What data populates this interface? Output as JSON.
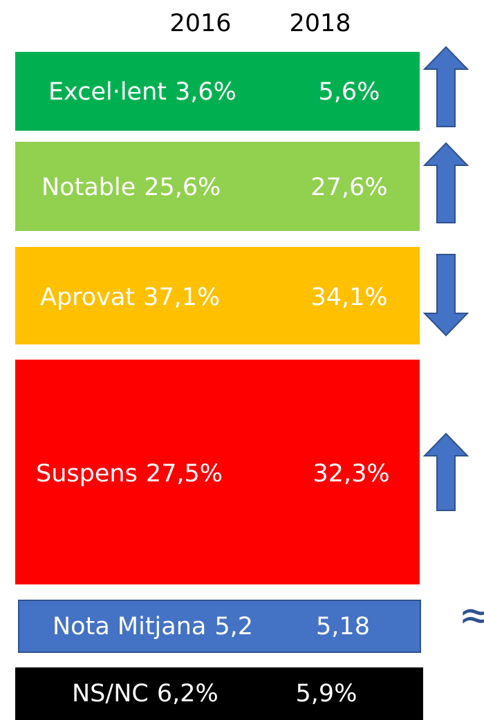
{
  "header": {
    "year1": "2016",
    "year2": "2018"
  },
  "rows": [
    {
      "label": "Excel·lent",
      "value1": "3,6%",
      "value2": "5,6%"
    },
    {
      "label": "Notable",
      "value1": "25,6%",
      "value2": "27,6%"
    },
    {
      "label": "Aprovat",
      "value1": "37,1%",
      "value2": "34,1%"
    },
    {
      "label": "Suspens",
      "value1": "27,5%",
      "value2": "32,3%"
    },
    {
      "label": "Nota Mitjana",
      "value1": "5,2",
      "value2": "5,18"
    },
    {
      "label": "NS/NC",
      "value1": "6,2%",
      "value2": "5,9%"
    }
  ],
  "approx": "≈"
}
